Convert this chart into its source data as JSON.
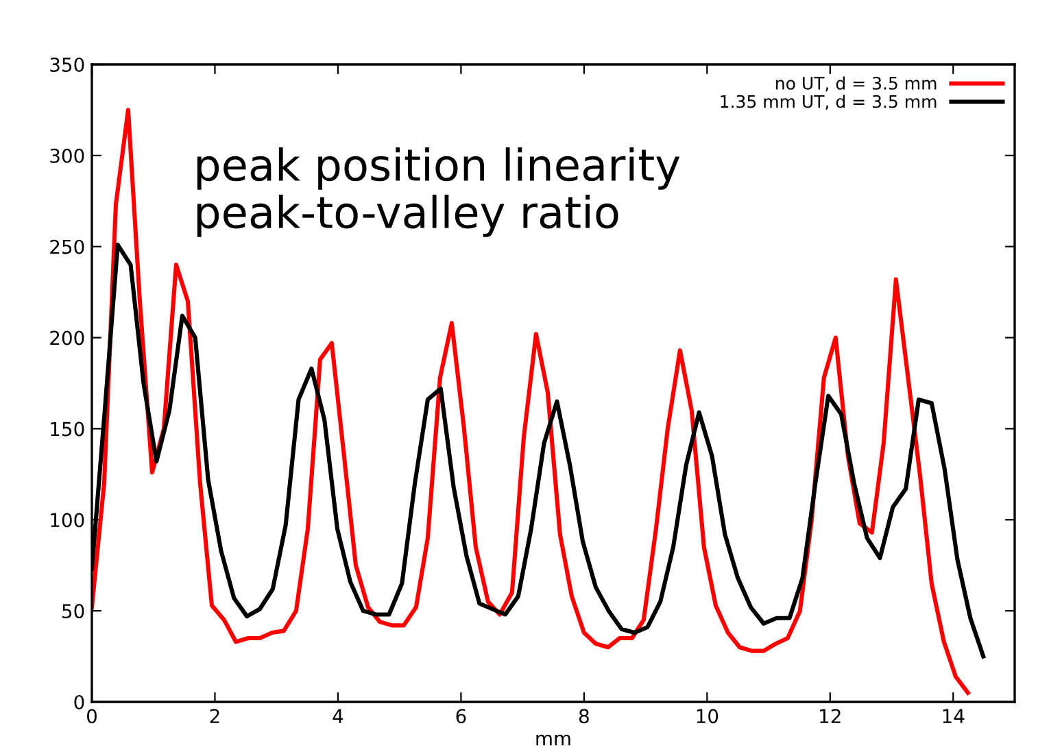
{
  "chart_data": {
    "type": "line",
    "xlabel": "mm",
    "annotations": [
      "peak position linearity\npeak-to-valley ratio"
    ],
    "xlim": [
      0,
      15
    ],
    "xticks": [
      0,
      2,
      4,
      6,
      8,
      10,
      12,
      14
    ],
    "ylim": [
      0,
      350
    ],
    "yticks": [
      0,
      50,
      100,
      150,
      200,
      250,
      300,
      350
    ],
    "grid": false,
    "legend": "top right",
    "marker": "none",
    "line_style": "solid",
    "series": [
      {
        "name": "no UT, d = 3.5 mm",
        "color": "#ff0000",
        "x": [
          0,
          0.2,
          0.39,
          0.59,
          0.78,
          0.98,
          1.17,
          1.37,
          1.56,
          1.76,
          1.95,
          2.15,
          2.34,
          2.54,
          2.73,
          2.93,
          3.12,
          3.32,
          3.51,
          3.71,
          3.9,
          4.1,
          4.29,
          4.49,
          4.68,
          4.88,
          5.07,
          5.27,
          5.46,
          5.66,
          5.85,
          6.05,
          6.24,
          6.44,
          6.63,
          6.83,
          7.02,
          7.22,
          7.41,
          7.61,
          7.8,
          8.0,
          8.19,
          8.39,
          8.58,
          8.78,
          8.97,
          9.17,
          9.36,
          9.56,
          9.75,
          9.95,
          10.14,
          10.34,
          10.53,
          10.73,
          10.92,
          11.12,
          11.31,
          11.51,
          11.7,
          11.9,
          12.09,
          12.29,
          12.48,
          12.68,
          12.87,
          13.07,
          13.26,
          13.46,
          13.65,
          13.85,
          14.04,
          14.24
        ],
        "values": [
          52,
          120,
          273,
          325,
          220,
          126,
          150,
          240,
          220,
          120,
          53,
          45,
          33,
          35,
          35,
          38,
          39,
          50,
          95,
          188,
          197,
          135,
          75,
          52,
          44,
          42,
          42,
          52,
          90,
          178,
          208,
          150,
          85,
          55,
          48,
          60,
          145,
          202,
          170,
          92,
          58,
          38,
          32,
          30,
          35,
          35,
          45,
          95,
          150,
          193,
          160,
          85,
          53,
          38,
          30,
          28,
          28,
          32,
          35,
          50,
          100,
          178,
          200,
          135,
          98,
          93,
          142,
          232,
          180,
          125,
          65,
          33,
          14,
          5
        ]
      },
      {
        "name": "1.35 mm UT, d = 3.5 mm",
        "color": "#000000",
        "x": [
          0,
          0.21,
          0.42,
          0.63,
          0.84,
          1.05,
          1.26,
          1.47,
          1.68,
          1.89,
          2.1,
          2.31,
          2.52,
          2.73,
          2.94,
          3.15,
          3.36,
          3.57,
          3.78,
          3.99,
          4.2,
          4.41,
          4.62,
          4.83,
          5.04,
          5.25,
          5.46,
          5.67,
          5.88,
          6.09,
          6.3,
          6.51,
          6.72,
          6.93,
          7.14,
          7.35,
          7.56,
          7.77,
          7.98,
          8.19,
          8.4,
          8.61,
          8.82,
          9.03,
          9.24,
          9.45,
          9.66,
          9.87,
          10.08,
          10.29,
          10.5,
          10.71,
          10.92,
          11.13,
          11.34,
          11.55,
          11.76,
          11.97,
          12.18,
          12.39,
          12.6,
          12.81,
          13.02,
          13.23,
          13.44,
          13.65,
          13.86,
          14.07,
          14.28,
          14.49
        ],
        "values": [
          73,
          160,
          251,
          240,
          175,
          132,
          160,
          212,
          200,
          122,
          83,
          57,
          47,
          51,
          62,
          97,
          166,
          183,
          155,
          95,
          66,
          50,
          48,
          48,
          65,
          120,
          166,
          172,
          118,
          80,
          54,
          51,
          48,
          58,
          95,
          142,
          165,
          130,
          88,
          63,
          50,
          40,
          38,
          41,
          55,
          85,
          130,
          159,
          135,
          92,
          68,
          52,
          43,
          46,
          46,
          68,
          120,
          168,
          158,
          120,
          90,
          79,
          107,
          117,
          166,
          164,
          128,
          78,
          46,
          25
        ]
      }
    ]
  }
}
